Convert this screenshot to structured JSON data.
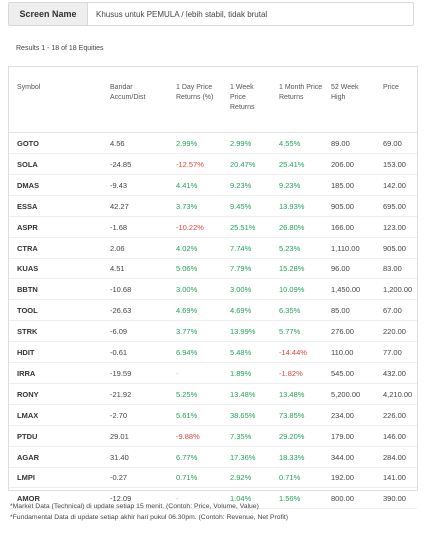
{
  "screen": {
    "label": "Screen Name",
    "value": "Khusus untuk PEMULA / lebih stabil, tidak brutal"
  },
  "results_text": "Results 1 - 18 of 18 Equities",
  "columns": [
    {
      "key": "symbol",
      "label": "Symbol"
    },
    {
      "key": "bandar",
      "label": "Bandar Accum/Dist"
    },
    {
      "key": "d1",
      "label": "1 Day Price Returns (%)"
    },
    {
      "key": "w1",
      "label": "1 Week Price Returns"
    },
    {
      "key": "m1",
      "label": "1 Month Price Returns"
    },
    {
      "key": "high52",
      "label": "52 Week High"
    },
    {
      "key": "price",
      "label": "Price"
    }
  ],
  "rows": [
    {
      "symbol": "GOTO",
      "bandar": "4.56",
      "d1": "2.99%",
      "w1": "2.99%",
      "m1": "4.55%",
      "high52": "89.00",
      "price": "69.00"
    },
    {
      "symbol": "SOLA",
      "bandar": "-24.85",
      "d1": "-12.57%",
      "w1": "20.47%",
      "m1": "25.41%",
      "high52": "206.00",
      "price": "153.00"
    },
    {
      "symbol": "DMAS",
      "bandar": "-9.43",
      "d1": "4.41%",
      "w1": "9.23%",
      "m1": "9.23%",
      "high52": "185.00",
      "price": "142.00"
    },
    {
      "symbol": "ESSA",
      "bandar": "42.27",
      "d1": "3.73%",
      "w1": "9.45%",
      "m1": "13.93%",
      "high52": "905.00",
      "price": "695.00"
    },
    {
      "symbol": "ASPR",
      "bandar": "-1.68",
      "d1": "-10.22%",
      "w1": "25.51%",
      "m1": "26.80%",
      "high52": "166.00",
      "price": "123.00"
    },
    {
      "symbol": "CTRA",
      "bandar": "2.06",
      "d1": "4.02%",
      "w1": "7.74%",
      "m1": "5.23%",
      "high52": "1,110.00",
      "price": "905.00"
    },
    {
      "symbol": "KUAS",
      "bandar": "4.51",
      "d1": "5.06%",
      "w1": "7.79%",
      "m1": "15.28%",
      "high52": "96.00",
      "price": "83.00"
    },
    {
      "symbol": "BBTN",
      "bandar": "-10.68",
      "d1": "3.00%",
      "w1": "3.00%",
      "m1": "10.09%",
      "high52": "1,450.00",
      "price": "1,200.00"
    },
    {
      "symbol": "TOOL",
      "bandar": "-26.63",
      "d1": "4.69%",
      "w1": "4.69%",
      "m1": "6.35%",
      "high52": "85.00",
      "price": "67.00"
    },
    {
      "symbol": "STRK",
      "bandar": "-6.09",
      "d1": "3.77%",
      "w1": "13.99%",
      "m1": "5.77%",
      "high52": "276.00",
      "price": "220.00"
    },
    {
      "symbol": "HDIT",
      "bandar": "-0.61",
      "d1": "6.94%",
      "w1": "5.48%",
      "m1": "-14.44%",
      "high52": "110.00",
      "price": "77.00"
    },
    {
      "symbol": "IRRA",
      "bandar": "-19.59",
      "d1": "-",
      "w1": "1.89%",
      "m1": "-1.82%",
      "high52": "545.00",
      "price": "432.00"
    },
    {
      "symbol": "RONY",
      "bandar": "-21.92",
      "d1": "5.25%",
      "w1": "13.48%",
      "m1": "13.48%",
      "high52": "5,200.00",
      "price": "4,210.00"
    },
    {
      "symbol": "LMAX",
      "bandar": "-2.70",
      "d1": "5.61%",
      "w1": "38.65%",
      "m1": "73.85%",
      "high52": "234.00",
      "price": "226.00"
    },
    {
      "symbol": "PTDU",
      "bandar": "29.01",
      "d1": "-9.88%",
      "w1": "7.35%",
      "m1": "29.20%",
      "high52": "179.00",
      "price": "146.00"
    },
    {
      "symbol": "AGAR",
      "bandar": "31.40",
      "d1": "6.77%",
      "w1": "17.36%",
      "m1": "18.33%",
      "high52": "344.00",
      "price": "284.00"
    },
    {
      "symbol": "LMPI",
      "bandar": "-0.27",
      "d1": "0.71%",
      "w1": "2.92%",
      "m1": "0.71%",
      "high52": "192.00",
      "price": "141.00"
    },
    {
      "symbol": "AMOR",
      "bandar": "-12.09",
      "d1": "-",
      "w1": "1.04%",
      "m1": "1.56%",
      "high52": "800.00",
      "price": "390.00"
    }
  ],
  "footnotes": [
    "*Market Data (Technical) di update setiap 15 menit. (Contoh: Price, Volume, Value)",
    "*Fundamental Data di update setiap akhir hari pukul 06.30pm. (Contoh: Revenue, Net Profit)"
  ],
  "colors": {
    "positive": "#21a35a",
    "negative": "#e0443e",
    "neutral": "#bbbbbb"
  }
}
